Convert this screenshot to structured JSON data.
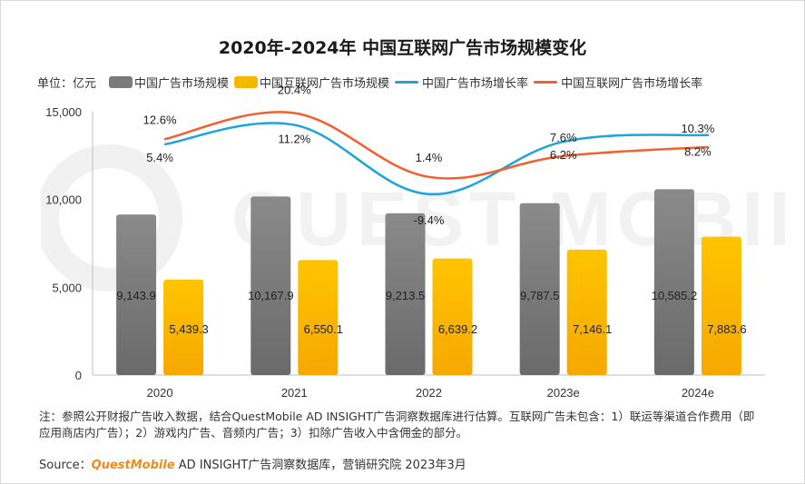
{
  "title": "2020年-2024年 中国互联网广告市场规模变化",
  "legend": {
    "unit": "单位：亿元",
    "items": [
      {
        "label": "中国广告市场规模",
        "kind": "bar",
        "color": "#7a7a7a"
      },
      {
        "label": "中国互联网广告市场规模",
        "kind": "bar",
        "color": "#f5b800"
      },
      {
        "label": "中国广告市场增长率",
        "kind": "line",
        "color": "#1fa3dc"
      },
      {
        "label": "中国互联网广告市场增长率",
        "kind": "line",
        "color": "#f06030"
      }
    ]
  },
  "watermark": "QUEST MOBILE",
  "note": "注：参照公开财报广告收入数据，结合QuestMobile AD INSIGHT广告洞察数据库进行估算。互联网广告未包含：1）联运等渠道合作费用（即应用商店内广告）；2）游戏内广告、音频内广告；3）扣除广告收入中含佣金的部分。",
  "source": {
    "prefix": "Source：",
    "brand": "QuestMobile",
    "text": "AD INSIGHT广告洞察数据库，营销研究院 2023年3月"
  },
  "chart_data": {
    "type": "bar",
    "categories": [
      "2020",
      "2021",
      "2022",
      "2023e",
      "2024e"
    ],
    "ylim": [
      0,
      15000
    ],
    "yticks": [
      "0",
      "5,000",
      "10,000",
      "15,000"
    ],
    "ytick_values": [
      0,
      5000,
      10000,
      15000
    ],
    "series": [
      {
        "name": "中国广告市场规模",
        "type": "bar",
        "color": "#7a7a7a",
        "values": [
          9143.9,
          10167.9,
          9213.5,
          9787.5,
          10585.2
        ],
        "labels": [
          "9,143.9",
          "10,167.9",
          "9,213.5",
          "9,787.5",
          "10,585.2"
        ]
      },
      {
        "name": "中国互联网广告市场规模",
        "type": "bar",
        "color": "#f5b800",
        "values": [
          5439.3,
          6550.1,
          6639.2,
          7146.1,
          7883.6
        ],
        "labels": [
          "5,439.3",
          "6,550.1",
          "6,639.2",
          "7,146.1",
          "7,883.6"
        ]
      },
      {
        "name": "中国广告市场增长率",
        "type": "line",
        "color": "#1fa3dc",
        "values": [
          5.4,
          11.2,
          -9.4,
          6.2,
          8.2
        ],
        "labels": [
          "5.4%",
          "11.2%",
          "-9.4%",
          "6.2%",
          "8.2%"
        ]
      },
      {
        "name": "中国互联网广告市场增长率",
        "type": "line",
        "color": "#f06030",
        "values": [
          12.6,
          20.4,
          1.4,
          7.6,
          10.3
        ],
        "labels": [
          "12.6%",
          "20.4%",
          "1.4%",
          "7.6%",
          "10.3%"
        ]
      }
    ]
  }
}
